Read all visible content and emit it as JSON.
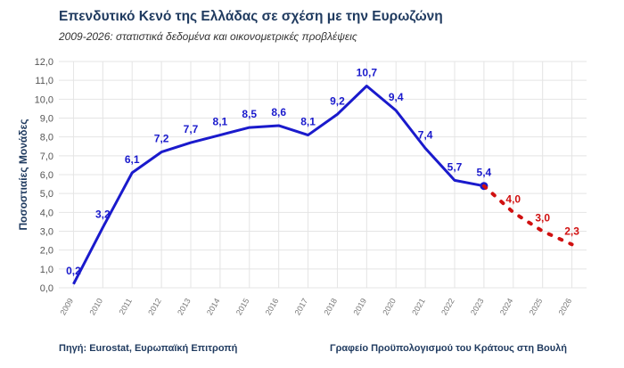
{
  "header": {
    "title": "Επενδυτικό Κενό της Ελλάδας σε σχέση με την Ευρωζώνη",
    "subtitle": "2009-2026: στατιστικά δεδομένα και οικονομετρικές προβλέψεις"
  },
  "footer": {
    "source": "Πηγή: Eurostat, Ευρωπαϊκή Επιτροπή",
    "credit": "Γραφείο Προϋπολογισμού του Κράτους στη Βουλή"
  },
  "colors": {
    "actual": "#1a1acc",
    "forecast": "#d01010",
    "grid": "#e4e4e4",
    "axis_text": "#555555"
  },
  "chart_data": {
    "type": "line",
    "title": "Επενδυτικό Κενό της Ελλάδας σε σχέση με την Ευρωζώνη",
    "subtitle": "2009-2026: στατιστικά δεδομένα και οικονομετρικές προβλέψεις",
    "xlabel": "",
    "ylabel": "Ποσοστιαίες Μονάδες",
    "ylim": [
      0,
      12
    ],
    "yticks": [
      "0,0",
      "1,0",
      "2,0",
      "3,0",
      "4,0",
      "5,0",
      "6,0",
      "7,0",
      "8,0",
      "9,0",
      "10,0",
      "11,0",
      "12,0"
    ],
    "grid": true,
    "x": [
      "2009",
      "2010",
      "2011",
      "2012",
      "2013",
      "2014",
      "2015",
      "2016",
      "2017",
      "2018",
      "2019",
      "2020",
      "2021",
      "2022",
      "2023",
      "2024",
      "2025",
      "2026"
    ],
    "series": [
      {
        "style": "solid",
        "x": [
          "2009",
          "2010",
          "2011",
          "2012",
          "2013",
          "2014",
          "2015",
          "2016",
          "2017",
          "2018",
          "2019",
          "2020",
          "2021",
          "2022",
          "2023"
        ],
        "values": [
          0.2,
          3.2,
          6.1,
          7.2,
          7.7,
          8.1,
          8.5,
          8.6,
          8.1,
          9.2,
          10.7,
          9.4,
          7.4,
          5.7,
          5.4
        ],
        "labels": [
          "0,2",
          "3,2",
          "6,1",
          "7,2",
          "7,7",
          "8,1",
          "8,5",
          "8,6",
          "8,1",
          "9,2",
          "10,7",
          "9,4",
          "7,4",
          "5,7",
          "5,4"
        ]
      },
      {
        "style": "dotted",
        "x": [
          "2023",
          "2024",
          "2025",
          "2026"
        ],
        "values": [
          5.4,
          4.0,
          3.0,
          2.3
        ],
        "labels": [
          "",
          "4,0",
          "3,0",
          "2,3"
        ]
      }
    ]
  }
}
